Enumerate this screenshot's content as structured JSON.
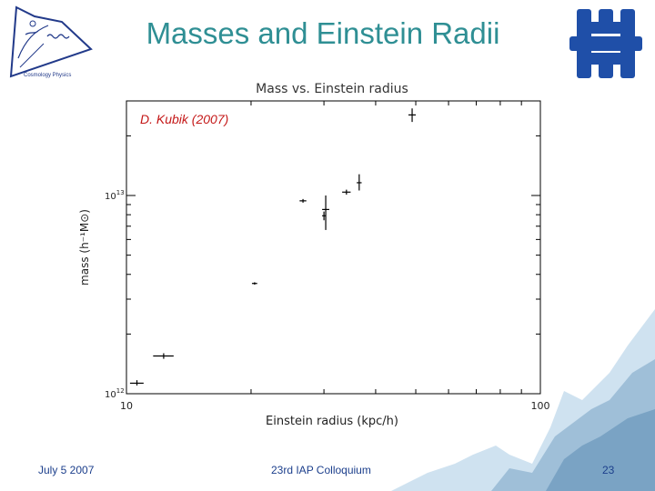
{
  "slide": {
    "title": "Masses and Einstein Radii",
    "credit": "D. Kubik (2007)",
    "footer_left": "July 5 2007",
    "footer_center": "23rd IAP Colloquium",
    "page_number": "23",
    "logo_left_text": "Cosmology Physics"
  },
  "colors": {
    "title": "#2f8f94",
    "credit": "#c41818",
    "footer": "#1c3f8c",
    "fermilab_logo": "#1f4fa8"
  },
  "chart_data": {
    "type": "scatter",
    "title": "Mass vs. Einstein radius",
    "xlabel": "Einstein radius (kpc/h)",
    "ylabel": "mass (h⁻¹M⊙)",
    "xscale": "log",
    "yscale": "log",
    "xlim": [
      10,
      100
    ],
    "ylim": [
      1000000000000.0,
      30000000000000.0
    ],
    "xtick_labels": [
      {
        "value": 10,
        "label": "10"
      },
      {
        "value": 100,
        "label": "100"
      }
    ],
    "ytick_labels": [
      {
        "value": 1000000000000.0,
        "base": "10",
        "exp": "12"
      },
      {
        "value": 10000000000000.0,
        "base": "10",
        "exp": "13"
      }
    ],
    "points": [
      {
        "x": 10.6,
        "y": 1130000000000.0,
        "xerr": 0.4,
        "y_lo": 1100000000000.0,
        "y_hi": 1170000000000.0
      },
      {
        "x": 12.3,
        "y": 1550000000000.0,
        "xerr": 0.7,
        "y_lo": 1500000000000.0,
        "y_hi": 1600000000000.0
      },
      {
        "x": 20.4,
        "y": 3600000000000.0,
        "xerr": 0.3,
        "y_lo": 3550000000000.0,
        "y_hi": 3650000000000.0
      },
      {
        "x": 26.7,
        "y": 9400000000000.0,
        "xerr": 0.5,
        "y_lo": 9200000000000.0,
        "y_hi": 9600000000000.0
      },
      {
        "x": 30.3,
        "y": 8500000000000.0,
        "xerr": 0.6,
        "y_lo": 6700000000000.0,
        "y_hi": 10000000000000.0
      },
      {
        "x": 30.0,
        "y": 7900000000000.0,
        "xerr": 0.3,
        "y_lo": 7500000000000.0,
        "y_hi": 8300000000000.0
      },
      {
        "x": 34.0,
        "y": 10400000000000.0,
        "xerr": 0.8,
        "y_lo": 10100000000000.0,
        "y_hi": 10700000000000.0
      },
      {
        "x": 36.5,
        "y": 11600000000000.0,
        "xerr": 0.5,
        "y_lo": 10600000000000.0,
        "y_hi": 12800000000000.0
      },
      {
        "x": 49.0,
        "y": 25500000000000.0,
        "xerr": 1.0,
        "y_lo": 23500000000000.0,
        "y_hi": 27500000000000.0
      }
    ],
    "grid": false,
    "marker": "cross",
    "color": "#000000"
  }
}
